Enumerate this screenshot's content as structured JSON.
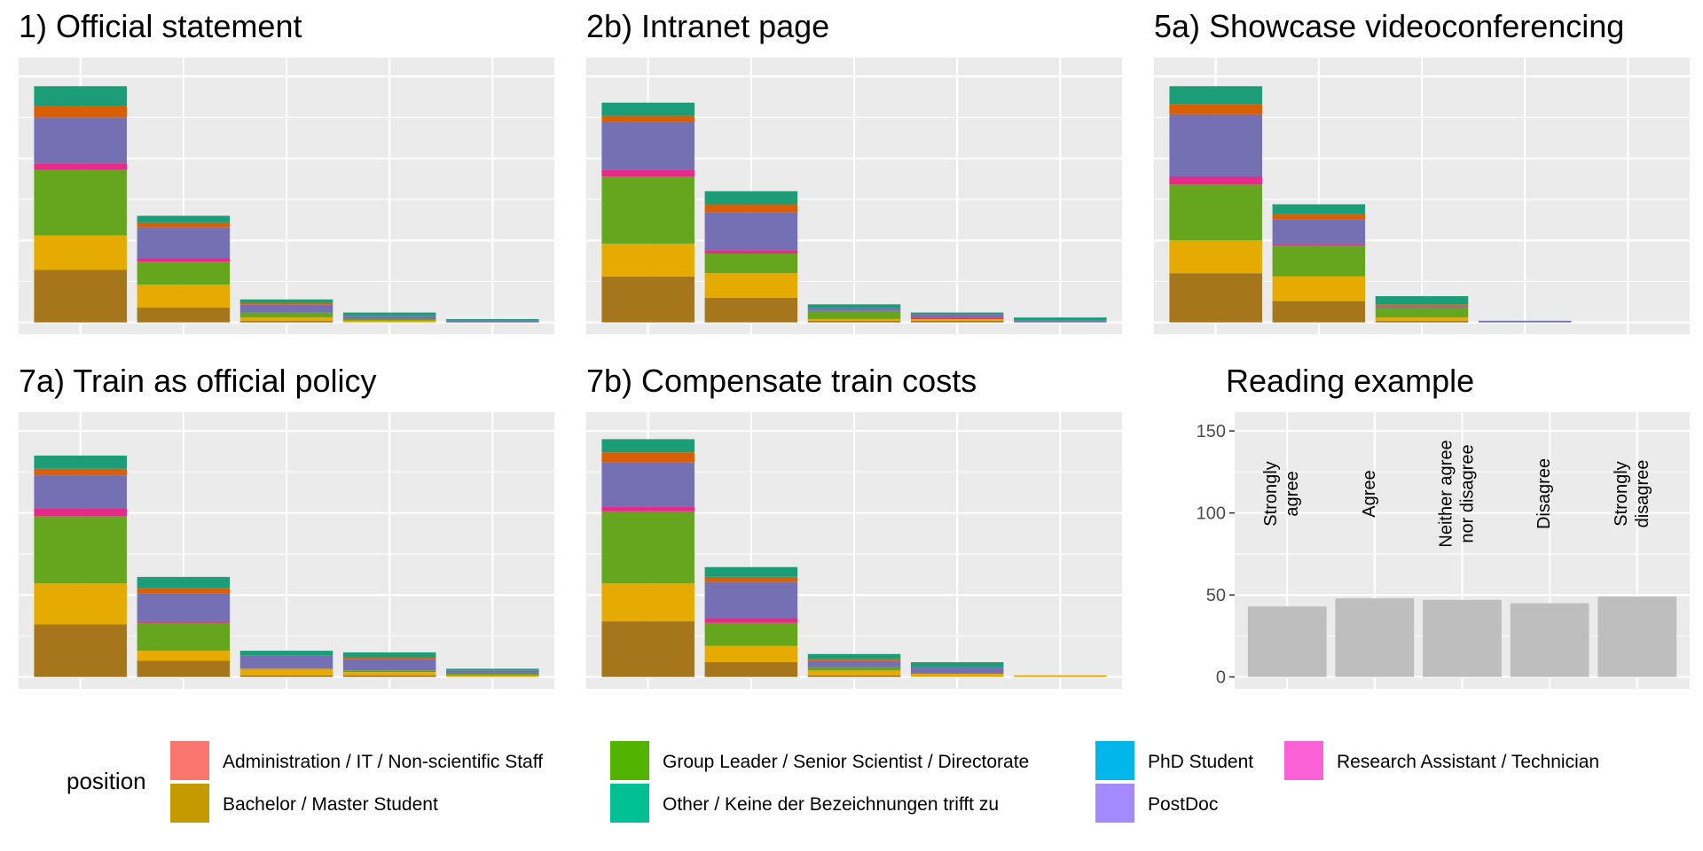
{
  "legend": {
    "title": "position",
    "entries": [
      {
        "name": "Administration / IT / Non-scientific Staff",
        "color": "#F8766D"
      },
      {
        "name": "Bachelor / Master Student",
        "color": "#C49A00"
      },
      {
        "name": "Group Leader / Senior Scientist / Directorate",
        "color": "#53B400"
      },
      {
        "name": "Other / Keine der Bezeichnungen trifft zu",
        "color": "#00C094"
      },
      {
        "name": "PhD Student",
        "color": "#00B6EB"
      },
      {
        "name": "PostDoc",
        "color": "#A58AFF"
      },
      {
        "name": "Research Assistant / Technician",
        "color": "#FB61D7"
      }
    ]
  },
  "panel_palette": {
    "Bachelor / Master Student": "#A6761D",
    "PhD Student": "#E6AB02",
    "Group Leader / Senior Scientist / Directorate": "#66A61E",
    "Research Assistant / Technician": "#E7298A",
    "PostDoc": "#7570B3",
    "Administration / IT / Non-scientific Staff": "#D95F02",
    "Other / Keine der Bezeichnungen trifft zu": "#1B9E77"
  },
  "stack_order": [
    "Bachelor / Master Student",
    "PhD Student",
    "Group Leader / Senior Scientist / Directorate",
    "Research Assistant / Technician",
    "PostDoc",
    "Administration / IT / Non-scientific Staff",
    "Other / Keine der Bezeichnungen trifft zu"
  ],
  "chart_data": [
    {
      "type": "bar",
      "stacked": true,
      "title": "1) Official statement",
      "categories": [
        "Strongly agree",
        "Agree",
        "Neither agree nor disagree",
        "Disagree",
        "Strongly disagree"
      ],
      "ylim": [
        0,
        160
      ],
      "grid": true,
      "series": [
        {
          "name": "Bachelor / Master Student",
          "values": [
            32,
            9,
            1,
            0,
            0
          ]
        },
        {
          "name": "PhD Student",
          "values": [
            21,
            14,
            2,
            1,
            0
          ]
        },
        {
          "name": "Group Leader / Senior Scientist / Directorate",
          "values": [
            40,
            14,
            3,
            1,
            0
          ]
        },
        {
          "name": "Research Assistant / Technician",
          "values": [
            4,
            2,
            0,
            0,
            0
          ]
        },
        {
          "name": "PostDoc",
          "values": [
            28,
            19,
            5,
            2,
            1
          ]
        },
        {
          "name": "Administration / IT / Non-scientific Staff",
          "values": [
            7,
            3,
            1,
            0,
            0
          ]
        },
        {
          "name": "Other / Keine der Bezeichnungen trifft zu",
          "values": [
            12,
            4,
            2,
            2,
            1
          ]
        }
      ]
    },
    {
      "type": "bar",
      "stacked": true,
      "title": "2b) Intranet page",
      "categories": [
        "Strongly agree",
        "Agree",
        "Neither agree nor disagree",
        "Disagree",
        "Strongly disagree"
      ],
      "ylim": [
        0,
        160
      ],
      "grid": true,
      "series": [
        {
          "name": "Bachelor / Master Student",
          "values": [
            28,
            15,
            1,
            1,
            0
          ]
        },
        {
          "name": "PhD Student",
          "values": [
            20,
            15,
            1,
            1,
            0
          ]
        },
        {
          "name": "Group Leader / Senior Scientist / Directorate",
          "values": [
            41,
            12,
            5,
            0,
            0
          ]
        },
        {
          "name": "Research Assistant / Technician",
          "values": [
            4,
            2,
            0,
            1,
            0
          ]
        },
        {
          "name": "PostDoc",
          "values": [
            29,
            23,
            2,
            2,
            1
          ]
        },
        {
          "name": "Administration / IT / Non-scientific Staff",
          "values": [
            4,
            5,
            0,
            0,
            0
          ]
        },
        {
          "name": "Other / Keine der Bezeichnungen trifft zu",
          "values": [
            8,
            8,
            2,
            1,
            2
          ]
        }
      ]
    },
    {
      "type": "bar",
      "stacked": true,
      "title": "5a) Showcase videoconferencing",
      "categories": [
        "Strongly agree",
        "Agree",
        "Neither agree nor disagree",
        "Disagree",
        "Strongly disagree"
      ],
      "ylim": [
        0,
        160
      ],
      "grid": true,
      "series": [
        {
          "name": "Bachelor / Master Student",
          "values": [
            30,
            13,
            1,
            0,
            0
          ]
        },
        {
          "name": "PhD Student",
          "values": [
            20,
            15,
            2,
            0,
            0
          ]
        },
        {
          "name": "Group Leader / Senior Scientist / Directorate",
          "values": [
            34,
            19,
            6,
            0,
            0
          ]
        },
        {
          "name": "Research Assistant / Technician",
          "values": [
            5,
            1,
            0,
            0,
            0
          ]
        },
        {
          "name": "PostDoc",
          "values": [
            38,
            15,
            1,
            1,
            0
          ]
        },
        {
          "name": "Administration / IT / Non-scientific Staff",
          "values": [
            6,
            3,
            1,
            0,
            0
          ]
        },
        {
          "name": "Other / Keine der Bezeichnungen trifft zu",
          "values": [
            11,
            6,
            5,
            0,
            0
          ]
        }
      ]
    },
    {
      "type": "bar",
      "stacked": true,
      "title": "7a) Train as official policy",
      "categories": [
        "Strongly agree",
        "Agree",
        "Neither agree nor disagree",
        "Disagree",
        "Strongly disagree"
      ],
      "ylim": [
        0,
        160
      ],
      "grid": true,
      "series": [
        {
          "name": "Bachelor / Master Student",
          "values": [
            32,
            10,
            1,
            1,
            0
          ]
        },
        {
          "name": "PhD Student",
          "values": [
            25,
            6,
            4,
            2,
            1
          ]
        },
        {
          "name": "Group Leader / Senior Scientist / Directorate",
          "values": [
            41,
            17,
            0,
            1,
            1
          ]
        },
        {
          "name": "Research Assistant / Technician",
          "values": [
            5,
            1,
            0,
            0,
            0
          ]
        },
        {
          "name": "PostDoc",
          "values": [
            20,
            17,
            8,
            7,
            2
          ]
        },
        {
          "name": "Administration / IT / Non-scientific Staff",
          "values": [
            4,
            3,
            0,
            1,
            0
          ]
        },
        {
          "name": "Other / Keine der Bezeichnungen trifft zu",
          "values": [
            8,
            7,
            3,
            3,
            1
          ]
        }
      ]
    },
    {
      "type": "bar",
      "stacked": true,
      "title": "7b) Compensate train costs",
      "categories": [
        "Strongly agree",
        "Agree",
        "Neither agree nor disagree",
        "Disagree",
        "Strongly disagree"
      ],
      "ylim": [
        0,
        160
      ],
      "grid": true,
      "series": [
        {
          "name": "Bachelor / Master Student",
          "values": [
            34,
            9,
            1,
            0,
            0
          ]
        },
        {
          "name": "PhD Student",
          "values": [
            23,
            10,
            3,
            2,
            1
          ]
        },
        {
          "name": "Group Leader / Senior Scientist / Directorate",
          "values": [
            44,
            14,
            2,
            0,
            0
          ]
        },
        {
          "name": "Research Assistant / Technician",
          "values": [
            3,
            3,
            0,
            0,
            0
          ]
        },
        {
          "name": "PostDoc",
          "values": [
            27,
            22,
            4,
            4,
            0
          ]
        },
        {
          "name": "Administration / IT / Non-scientific Staff",
          "values": [
            6,
            3,
            1,
            0,
            0
          ]
        },
        {
          "name": "Other / Keine der Bezeichnungen trifft zu",
          "values": [
            8,
            6,
            3,
            3,
            0
          ]
        }
      ]
    },
    {
      "type": "bar",
      "title": "Reading example",
      "categories": [
        "Strongly agree",
        "Agree",
        "Neither agree nor disagree",
        "Disagree",
        "Strongly disagree"
      ],
      "category_labels": [
        [
          "Strongly",
          "agree"
        ],
        [
          "Agree"
        ],
        [
          "Neither agree",
          "nor disagree"
        ],
        [
          "Disagree"
        ],
        [
          "Strongly",
          "disagree"
        ]
      ],
      "values": [
        43,
        48,
        47,
        45,
        49
      ],
      "color": "#BEBEBE",
      "ylim": [
        0,
        160
      ],
      "yticks": [
        0,
        50,
        100,
        150
      ],
      "grid": true
    }
  ]
}
